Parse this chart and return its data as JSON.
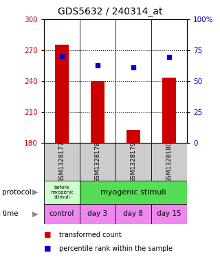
{
  "title": "GDS5632 / 240314_at",
  "samples": [
    "GSM1328177",
    "GSM1328178",
    "GSM1328179",
    "GSM1328180"
  ],
  "bar_values": [
    275,
    240,
    193,
    243
  ],
  "bar_base": 180,
  "blue_values": [
    264,
    255,
    253,
    263
  ],
  "ylim_left": [
    180,
    300
  ],
  "ylim_right": [
    0,
    100
  ],
  "yticks_left": [
    180,
    210,
    240,
    270,
    300
  ],
  "yticks_right": [
    0,
    25,
    50,
    75,
    100
  ],
  "ytick_labels_right": [
    "0",
    "25",
    "50",
    "75",
    "100%"
  ],
  "bar_color": "#cc0000",
  "blue_color": "#0000cc",
  "protocol_color_first": "#ccffcc",
  "protocol_color_rest": "#55dd55",
  "time_color": "#ee88ee",
  "sample_bg": "#cccccc",
  "bg_color": "#ffffff",
  "legend_items": [
    "transformed count",
    "percentile rank within the sample"
  ],
  "grid_ticks": [
    210,
    240,
    270
  ]
}
